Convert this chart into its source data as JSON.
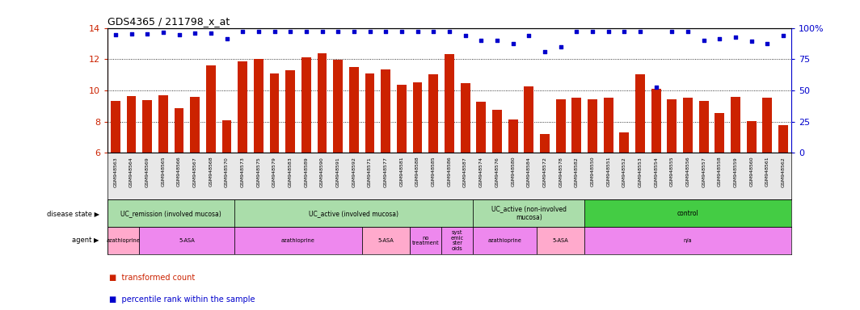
{
  "title": "GDS4365 / 211798_x_at",
  "samples": [
    "GSM948563",
    "GSM948564",
    "GSM948569",
    "GSM948565",
    "GSM948566",
    "GSM948567",
    "GSM948568",
    "GSM948570",
    "GSM948573",
    "GSM948575",
    "GSM948579",
    "GSM948583",
    "GSM948589",
    "GSM948590",
    "GSM948591",
    "GSM948592",
    "GSM948571",
    "GSM948577",
    "GSM948581",
    "GSM948588",
    "GSM948585",
    "GSM948586",
    "GSM948587",
    "GSM948574",
    "GSM948576",
    "GSM948580",
    "GSM948584",
    "GSM948572",
    "GSM948578",
    "GSM948582",
    "GSM948550",
    "GSM948551",
    "GSM948552",
    "GSM948553",
    "GSM948554",
    "GSM948555",
    "GSM948556",
    "GSM948557",
    "GSM948558",
    "GSM948559",
    "GSM948560",
    "GSM948561",
    "GSM948562"
  ],
  "bar_values": [
    9.3,
    9.65,
    9.35,
    9.7,
    8.85,
    9.6,
    11.6,
    8.1,
    11.85,
    12.0,
    11.1,
    11.3,
    12.1,
    12.35,
    11.95,
    11.5,
    11.1,
    11.35,
    10.35,
    10.5,
    11.05,
    12.3,
    10.45,
    9.25,
    8.75,
    8.15,
    10.25,
    7.2,
    9.4,
    9.55,
    9.4,
    9.55,
    7.3,
    11.05,
    10.1,
    9.45,
    9.55,
    9.3,
    8.55,
    9.6,
    8.05,
    9.55,
    7.75
  ],
  "percentile_values": [
    13.55,
    13.6,
    13.6,
    13.7,
    13.55,
    13.65,
    13.65,
    13.3,
    13.75,
    13.75,
    13.75,
    13.75,
    13.75,
    13.75,
    13.75,
    13.75,
    13.75,
    13.75,
    13.75,
    13.75,
    13.75,
    13.75,
    13.5,
    13.2,
    13.2,
    13.0,
    13.5,
    12.5,
    12.8,
    13.75,
    13.75,
    13.75,
    13.75,
    13.75,
    10.2,
    13.75,
    13.75,
    13.2,
    13.3,
    13.4,
    13.15,
    13.0,
    13.5
  ],
  "ylim": [
    6,
    14
  ],
  "yticks": [
    6,
    8,
    10,
    12,
    14
  ],
  "bar_color": "#CC2200",
  "dot_color": "#0000CC",
  "background_color": "#FFFFFF",
  "disease_groups": [
    {
      "label": "UC_remission (involved mucosa)",
      "start": 0,
      "end": 8,
      "color": "#AADDAA"
    },
    {
      "label": "UC_active (involved mucosa)",
      "start": 8,
      "end": 23,
      "color": "#AADDAA"
    },
    {
      "label": "UC_active (non-involved\nmucosa)",
      "start": 23,
      "end": 30,
      "color": "#AADDAA"
    },
    {
      "label": "control",
      "start": 30,
      "end": 43,
      "color": "#44CC44"
    }
  ],
  "agent_groups": [
    {
      "label": "azathioprine",
      "start": 0,
      "end": 2,
      "color": "#FFAACC"
    },
    {
      "label": "5-ASA",
      "start": 2,
      "end": 8,
      "color": "#EE88EE"
    },
    {
      "label": "azathioprine",
      "start": 8,
      "end": 16,
      "color": "#EE88EE"
    },
    {
      "label": "5-ASA",
      "start": 16,
      "end": 19,
      "color": "#FFAACC"
    },
    {
      "label": "no\ntreatment",
      "start": 19,
      "end": 21,
      "color": "#EE88EE"
    },
    {
      "label": "syst\nemic\nster\noids",
      "start": 21,
      "end": 23,
      "color": "#EE88EE"
    },
    {
      "label": "azathioprine",
      "start": 23,
      "end": 27,
      "color": "#EE88EE"
    },
    {
      "label": "5-ASA",
      "start": 27,
      "end": 30,
      "color": "#FFAACC"
    },
    {
      "label": "n/a",
      "start": 30,
      "end": 43,
      "color": "#EE88EE"
    }
  ],
  "right_ytick_labels": [
    "0",
    "25",
    "50",
    "75",
    "100%"
  ],
  "right_ytick_positions": [
    6,
    8,
    10,
    12,
    14
  ],
  "right_axis_color": "#0000CC",
  "left_labels": {
    "disease_state": "disease state",
    "agent": "agent"
  }
}
